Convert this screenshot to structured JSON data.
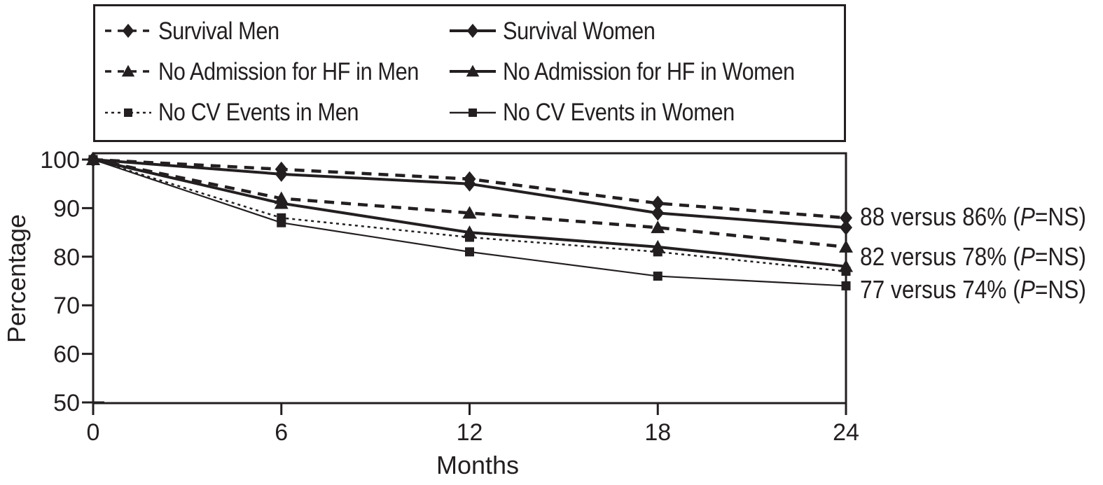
{
  "figure": {
    "background": "#ffffff",
    "ink_color": "#231f20"
  },
  "chart_data": {
    "type": "line",
    "title": "",
    "xlabel": "Months",
    "ylabel": "Percentage",
    "x": [
      0,
      6,
      12,
      18,
      24
    ],
    "xlim": [
      0,
      24
    ],
    "ylim": [
      50,
      100
    ],
    "xticks": [
      "0",
      "6",
      "12",
      "18",
      "24"
    ],
    "yticks": [
      "100",
      "90",
      "80",
      "70",
      "60",
      "50"
    ],
    "ytick_values": [
      100,
      90,
      80,
      70,
      60,
      50
    ],
    "grid": false,
    "legend_position": "top-box-two-columns",
    "series": [
      {
        "name": "Survival Men",
        "marker": "diamond",
        "line": "dashed",
        "values": [
          100,
          98,
          96,
          91,
          88
        ]
      },
      {
        "name": "Survival Women",
        "marker": "diamond",
        "line": "solid",
        "values": [
          100,
          97,
          95,
          89,
          86
        ]
      },
      {
        "name": "No Admission for HF in Men",
        "marker": "triangle",
        "line": "dashed",
        "values": [
          100,
          92,
          89,
          86,
          82
        ]
      },
      {
        "name": "No Admission for HF in Women",
        "marker": "triangle",
        "line": "solid",
        "values": [
          100,
          91,
          85,
          82,
          78
        ]
      },
      {
        "name": "No CV Events in Men",
        "marker": "square",
        "line": "dotted",
        "values": [
          100,
          88,
          84,
          81,
          77
        ]
      },
      {
        "name": "No CV Events in Women",
        "marker": "square",
        "line": "solid_thin",
        "values": [
          100,
          87,
          81,
          76,
          74
        ]
      }
    ],
    "annotations": [
      {
        "text": "88 versus 86% (P=NS)",
        "before": "88 versus 86% (",
        "italic": "P",
        "after": "=NS)"
      },
      {
        "text": "82 versus 78% (P=NS)",
        "before": "82 versus 78% (",
        "italic": "P",
        "after": "=NS)"
      },
      {
        "text": "77 versus 74% (P=NS)",
        "before": "77 versus 74% (",
        "italic": "P",
        "after": "=NS)"
      }
    ]
  }
}
